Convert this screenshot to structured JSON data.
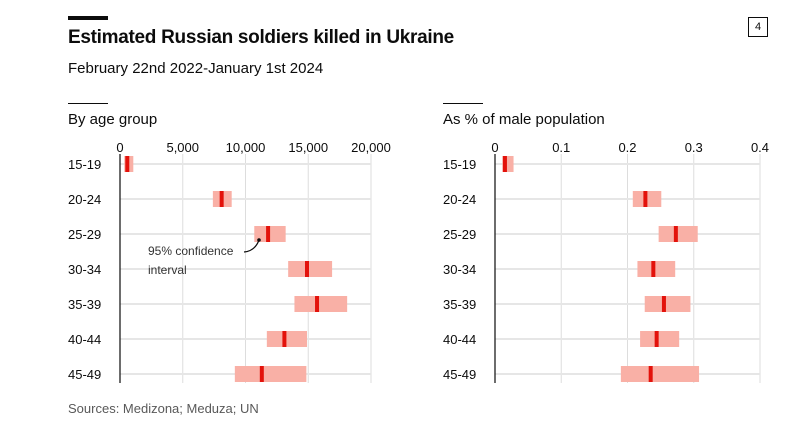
{
  "header": {
    "title": "Estimated Russian soldiers killed in Ukraine",
    "subtitle": "February 22nd 2022-January 1st 2024",
    "page_number": "4"
  },
  "footer": {
    "source": "Sources: Medizona; Meduza; UN"
  },
  "colors": {
    "interval": "#f9b0a6",
    "estimate": "#e3120b",
    "grid": "#dddddd",
    "axis": "#0c0c0c"
  },
  "annotation": {
    "line1": "95% confidence",
    "line2": "interval"
  },
  "chart_data": [
    {
      "type": "range-dot",
      "title": "By age group",
      "xlabel": "",
      "ylabel": "",
      "xlim": [
        0,
        20000
      ],
      "x_ticks": [
        0,
        5000,
        10000,
        15000,
        20000
      ],
      "x_tick_labels": [
        "0",
        "5,000",
        "10,000",
        "15,000",
        "20,000"
      ],
      "categories": [
        "15-19",
        "20-24",
        "25-29",
        "30-34",
        "35-39",
        "40-44",
        "45-49"
      ],
      "series": [
        {
          "name": "estimate",
          "values": [
            580,
            8100,
            11800,
            14900,
            15700,
            13100,
            11300
          ]
        },
        {
          "name": "ci_low",
          "values": [
            340,
            7400,
            10700,
            13400,
            13900,
            11700,
            9150
          ]
        },
        {
          "name": "ci_high",
          "values": [
            1060,
            8900,
            13200,
            16900,
            18100,
            14900,
            14850
          ]
        }
      ],
      "grid": true
    },
    {
      "type": "range-dot",
      "title": "As % of male population",
      "xlabel": "",
      "ylabel": "",
      "xlim": [
        0,
        0.4
      ],
      "x_ticks": [
        0,
        0.1,
        0.2,
        0.3,
        0.4
      ],
      "x_tick_labels": [
        "0",
        "0.1",
        "0.2",
        "0.3",
        "0.4"
      ],
      "categories": [
        "15-19",
        "20-24",
        "25-29",
        "30-34",
        "35-39",
        "40-44",
        "45-49"
      ],
      "series": [
        {
          "name": "estimate",
          "values": [
            0.015,
            0.227,
            0.273,
            0.239,
            0.255,
            0.244,
            0.235
          ]
        },
        {
          "name": "ci_low",
          "values": [
            0.011,
            0.208,
            0.247,
            0.215,
            0.226,
            0.219,
            0.19
          ]
        },
        {
          "name": "ci_high",
          "values": [
            0.028,
            0.251,
            0.306,
            0.272,
            0.295,
            0.278,
            0.308
          ]
        }
      ],
      "grid": true
    }
  ]
}
